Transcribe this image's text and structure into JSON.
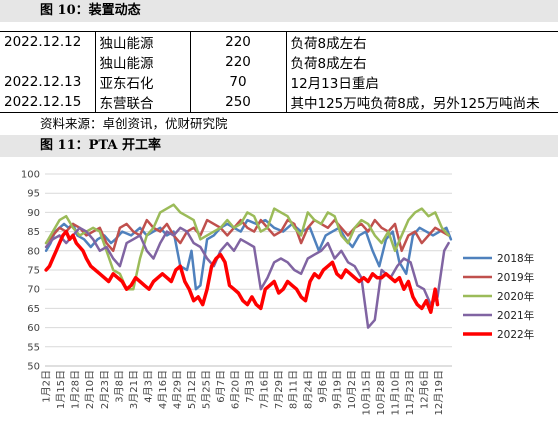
{
  "fig10": {
    "title": "图 10：装置动态",
    "rows": [
      {
        "date": "2022.12.12",
        "company": "独山能源",
        "capacity": "220",
        "note": "负荷8成左右"
      },
      {
        "date": "",
        "company": "独山能源",
        "capacity": "220",
        "note": "负荷8成左右"
      },
      {
        "date": "2022.12.13",
        "company": "亚东石化",
        "capacity": "70",
        "note": "12月13日重启"
      },
      {
        "date": "2022.12.15",
        "company": "东营联合",
        "capacity": "250",
        "note": "其中125万吨负荷8成，另外125万吨尚未"
      }
    ],
    "source": "资料来源：卓创资讯，优财研究院"
  },
  "fig11": {
    "title": "图 11：PTA 开工率"
  },
  "chart_data": {
    "type": "line",
    "title": "",
    "xlabel": "",
    "ylabel": "",
    "ylim": [
      50,
      100
    ],
    "yticks": [
      50,
      55,
      60,
      65,
      70,
      75,
      80,
      85,
      90,
      95,
      100
    ],
    "x_ticks": [
      "1月2日",
      "1月15日",
      "1月28日",
      "2月10日",
      "2月23日",
      "3月8日",
      "3月21日",
      "4月3日",
      "4月16日",
      "4月29日",
      "5月12日",
      "5月25日",
      "6月7日",
      "6月20日",
      "7月3日",
      "7月16日",
      "7月29日",
      "8月11日",
      "8月24日",
      "9月6日",
      "9月19日",
      "10月2日",
      "10月15日",
      "10月28日",
      "11月10日",
      "11月23日",
      "12月6日",
      "12月19日"
    ],
    "x_tick_days": [
      2,
      15,
      28,
      41,
      54,
      67,
      80,
      93,
      106,
      119,
      132,
      145,
      158,
      171,
      184,
      197,
      210,
      223,
      236,
      249,
      262,
      275,
      288,
      301,
      314,
      327,
      340,
      353
    ],
    "grid": "horizontal",
    "legend_position": "right",
    "x_unit": "day of year",
    "series": [
      {
        "name": "2018年",
        "color": "#4f81bd",
        "width": 2.5,
        "x": [
          2,
          6,
          10,
          14,
          18,
          22,
          26,
          30,
          36,
          42,
          48,
          54,
          60,
          64,
          70,
          78,
          86,
          92,
          98,
          104,
          110,
          116,
          122,
          128,
          132,
          136,
          140,
          146,
          152,
          158,
          164,
          170,
          176,
          182,
          190,
          198,
          206,
          214,
          222,
          230,
          238,
          246,
          252,
          258,
          264,
          270,
          276,
          282,
          288,
          294,
          300,
          306,
          312,
          318,
          324,
          330,
          336,
          342,
          348,
          354,
          360,
          364
        ],
        "y": [
          80,
          82,
          85,
          86,
          87,
          86,
          87,
          84,
          83,
          81,
          83,
          84,
          82,
          83,
          85,
          84,
          86,
          84,
          85,
          86,
          84,
          85,
          76,
          75,
          80,
          70,
          71,
          83,
          84,
          86,
          87,
          86,
          85,
          88,
          87,
          88,
          86,
          85,
          87,
          85,
          86,
          80,
          84,
          85,
          86,
          83,
          81,
          84,
          85,
          80,
          76,
          83,
          85,
          77,
          74,
          84,
          86,
          85,
          84,
          85,
          86,
          83
        ]
      },
      {
        "name": "2019年",
        "color": "#c0504d",
        "width": 2.5,
        "x": [
          2,
          8,
          14,
          20,
          26,
          32,
          38,
          44,
          50,
          56,
          62,
          68,
          74,
          80,
          86,
          92,
          98,
          104,
          110,
          116,
          122,
          128,
          134,
          140,
          146,
          152,
          158,
          164,
          170,
          176,
          182,
          188,
          194,
          200,
          206,
          212,
          218,
          224,
          230,
          236,
          242,
          248,
          254,
          260,
          266,
          272,
          278,
          284,
          290,
          296,
          302,
          308,
          314,
          320,
          326,
          332,
          338,
          344,
          350,
          356,
          362
        ],
        "y": [
          82,
          84,
          86,
          85,
          87,
          86,
          84,
          85,
          86,
          82,
          80,
          86,
          87,
          85,
          84,
          88,
          86,
          85,
          87,
          84,
          82,
          85,
          86,
          84,
          88,
          87,
          86,
          84,
          86,
          88,
          86,
          85,
          88,
          86,
          84,
          85,
          88,
          87,
          82,
          86,
          88,
          87,
          86,
          88,
          86,
          84,
          86,
          87,
          85,
          88,
          86,
          85,
          87,
          80,
          84,
          85,
          82,
          84,
          86,
          85,
          84
        ]
      },
      {
        "name": "2020年",
        "color": "#9bbb59",
        "width": 2.5,
        "x": [
          2,
          8,
          14,
          20,
          26,
          32,
          38,
          44,
          50,
          56,
          62,
          68,
          74,
          80,
          86,
          92,
          98,
          104,
          110,
          116,
          122,
          128,
          134,
          140,
          146,
          152,
          158,
          164,
          170,
          176,
          182,
          188,
          194,
          200,
          206,
          212,
          218,
          224,
          230,
          236,
          242,
          248,
          254,
          260,
          266,
          272,
          278,
          284,
          290,
          296,
          302,
          308,
          314,
          320,
          326,
          332,
          338,
          344,
          350,
          356,
          362
        ],
        "y": [
          82,
          85,
          88,
          89,
          86,
          84,
          85,
          86,
          85,
          80,
          75,
          74,
          70,
          70,
          78,
          84,
          86,
          90,
          91,
          92,
          90,
          89,
          88,
          83,
          84,
          85,
          86,
          88,
          86,
          87,
          90,
          89,
          85,
          86,
          91,
          90,
          89,
          86,
          84,
          90,
          88,
          87,
          90,
          89,
          84,
          82,
          86,
          88,
          87,
          84,
          82,
          85,
          80,
          84,
          88,
          90,
          91,
          89,
          90,
          86,
          84
        ]
      },
      {
        "name": "2021年",
        "color": "#8064a2",
        "width": 2.5,
        "x": [
          2,
          8,
          14,
          20,
          26,
          32,
          38,
          44,
          50,
          56,
          62,
          68,
          74,
          80,
          86,
          92,
          98,
          104,
          110,
          116,
          122,
          128,
          134,
          140,
          146,
          152,
          158,
          164,
          170,
          176,
          182,
          188,
          194,
          200,
          206,
          212,
          218,
          224,
          230,
          236,
          242,
          248,
          254,
          260,
          266,
          272,
          278,
          284,
          290,
          296,
          302,
          306,
          310,
          316,
          322,
          328,
          334,
          340,
          346,
          352,
          358,
          362
        ],
        "y": [
          81,
          83,
          84,
          82,
          84,
          86,
          85,
          83,
          80,
          81,
          78,
          76,
          82,
          83,
          84,
          80,
          78,
          82,
          85,
          84,
          86,
          85,
          82,
          81,
          78,
          76,
          80,
          82,
          80,
          83,
          82,
          81,
          70,
          73,
          77,
          78,
          77,
          75,
          74,
          78,
          79,
          80,
          82,
          78,
          80,
          77,
          76,
          73,
          60,
          62,
          75,
          74,
          73,
          76,
          78,
          77,
          71,
          70,
          66,
          68,
          80,
          82
        ]
      },
      {
        "name": "2022年",
        "color": "#ff0000",
        "width": 3.5,
        "x": [
          2,
          5,
          8,
          11,
          14,
          17,
          20,
          23,
          26,
          29,
          32,
          35,
          38,
          42,
          46,
          50,
          54,
          58,
          62,
          66,
          70,
          74,
          78,
          82,
          86,
          90,
          94,
          98,
          102,
          106,
          110,
          114,
          118,
          122,
          126,
          130,
          134,
          138,
          142,
          146,
          150,
          154,
          158,
          162,
          166,
          170,
          174,
          178,
          182,
          186,
          190,
          194,
          198,
          202,
          206,
          210,
          214,
          218,
          222,
          226,
          230,
          234,
          238,
          242,
          246,
          250,
          254,
          258,
          262,
          266,
          270,
          274,
          278,
          282,
          286,
          290,
          294,
          298,
          302,
          306,
          310,
          314,
          318,
          322,
          326,
          330,
          334,
          338,
          342,
          346,
          350,
          352
        ],
        "y": [
          75,
          76,
          78,
          80,
          82,
          84,
          85,
          83,
          84,
          82,
          81,
          80,
          78,
          76,
          75,
          74,
          73,
          72,
          74,
          73,
          72,
          70,
          71,
          73,
          72,
          71,
          70,
          72,
          73,
          74,
          73,
          72,
          75,
          76,
          72,
          70,
          67,
          68,
          66,
          70,
          76,
          78,
          79,
          77,
          71,
          70,
          69,
          67,
          66,
          68,
          66,
          65,
          70,
          71,
          72,
          69,
          70,
          72,
          71,
          70,
          68,
          67,
          72,
          74,
          73,
          75,
          76,
          77,
          74,
          73,
          75,
          74,
          73,
          72,
          73,
          72,
          74,
          73,
          73,
          74,
          73,
          72,
          73,
          70,
          72,
          68,
          66,
          65,
          67,
          64,
          70,
          66
        ]
      }
    ]
  }
}
